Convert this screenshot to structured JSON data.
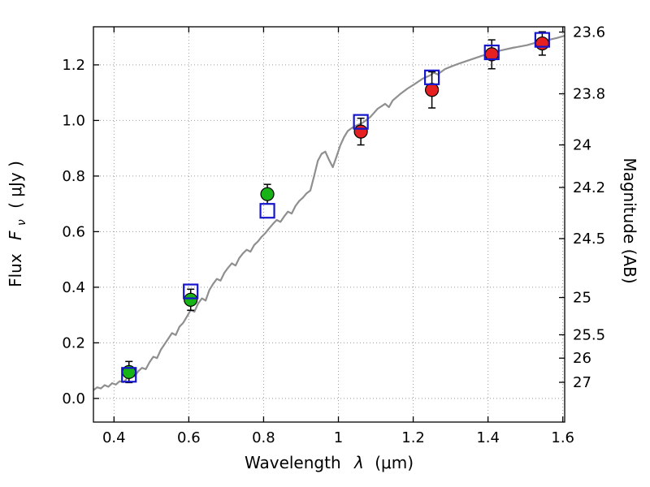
{
  "figure": {
    "background": "#ffffff"
  },
  "chart_data": {
    "type": "line+scatter",
    "title": "",
    "xlabel": {
      "prefix": "Wavelength",
      "symbol": "λ",
      "suffix": "(μm)"
    },
    "ylabel_left": {
      "prefix": "Flux",
      "symbol": "F",
      "subscript": "ν",
      "suffix": "( μJy )"
    },
    "ylabel_right": "Magnitude (AB)",
    "xlim": [
      0.345,
      1.605
    ],
    "ylim": [
      -0.085,
      1.337
    ],
    "grid": "dotted",
    "grid_color": "#999999",
    "legend": "none",
    "axis_color": "#000000",
    "x_ticks": [
      {
        "label": "0.4",
        "value": 0.4
      },
      {
        "label": "0.6",
        "value": 0.6
      },
      {
        "label": "0.8",
        "value": 0.8
      },
      {
        "label": "1",
        "value": 1.0
      },
      {
        "label": "1.2",
        "value": 1.2
      },
      {
        "label": "1.4",
        "value": 1.4
      },
      {
        "label": "1.6",
        "value": 1.6
      }
    ],
    "y_ticks_left": [
      {
        "label": "0.0",
        "value": 0.0
      },
      {
        "label": "0.2",
        "value": 0.2
      },
      {
        "label": "0.4",
        "value": 0.4
      },
      {
        "label": "0.6",
        "value": 0.6
      },
      {
        "label": "0.8",
        "value": 0.8
      },
      {
        "label": "1.0",
        "value": 1.0
      },
      {
        "label": "1.2",
        "value": 1.2
      }
    ],
    "y_ticks_right": [
      {
        "label": "23.6",
        "flux": 1.318
      },
      {
        "label": "23.8",
        "flux": 1.096
      },
      {
        "label": "24",
        "flux": 0.912
      },
      {
        "label": "24.2",
        "flux": 0.759
      },
      {
        "label": "24.5",
        "flux": 0.575
      },
      {
        "label": "25",
        "flux": 0.363
      },
      {
        "label": "25.5",
        "flux": 0.229
      },
      {
        "label": "26",
        "flux": 0.145
      },
      {
        "label": "27",
        "flux": 0.058
      }
    ],
    "model_spectrum": {
      "name": "model-spectrum-line",
      "color": "#8f8f8f",
      "points": [
        [
          0.345,
          0.03
        ],
        [
          0.355,
          0.04
        ],
        [
          0.365,
          0.036
        ],
        [
          0.375,
          0.048
        ],
        [
          0.385,
          0.042
        ],
        [
          0.395,
          0.055
        ],
        [
          0.405,
          0.05
        ],
        [
          0.415,
          0.062
        ],
        [
          0.425,
          0.058
        ],
        [
          0.435,
          0.072
        ],
        [
          0.445,
          0.085
        ],
        [
          0.455,
          0.08
        ],
        [
          0.465,
          0.098
        ],
        [
          0.475,
          0.11
        ],
        [
          0.485,
          0.105
        ],
        [
          0.495,
          0.13
        ],
        [
          0.505,
          0.15
        ],
        [
          0.515,
          0.145
        ],
        [
          0.525,
          0.175
        ],
        [
          0.535,
          0.195
        ],
        [
          0.545,
          0.215
        ],
        [
          0.555,
          0.235
        ],
        [
          0.565,
          0.228
        ],
        [
          0.575,
          0.258
        ],
        [
          0.585,
          0.272
        ],
        [
          0.595,
          0.295
        ],
        [
          0.605,
          0.318
        ],
        [
          0.615,
          0.312
        ],
        [
          0.625,
          0.342
        ],
        [
          0.635,
          0.36
        ],
        [
          0.645,
          0.352
        ],
        [
          0.655,
          0.39
        ],
        [
          0.665,
          0.412
        ],
        [
          0.675,
          0.43
        ],
        [
          0.685,
          0.424
        ],
        [
          0.695,
          0.452
        ],
        [
          0.705,
          0.47
        ],
        [
          0.715,
          0.486
        ],
        [
          0.725,
          0.478
        ],
        [
          0.735,
          0.505
        ],
        [
          0.745,
          0.522
        ],
        [
          0.755,
          0.535
        ],
        [
          0.765,
          0.528
        ],
        [
          0.775,
          0.552
        ],
        [
          0.785,
          0.565
        ],
        [
          0.795,
          0.582
        ],
        [
          0.805,
          0.595
        ],
        [
          0.815,
          0.612
        ],
        [
          0.825,
          0.628
        ],
        [
          0.835,
          0.642
        ],
        [
          0.845,
          0.635
        ],
        [
          0.855,
          0.655
        ],
        [
          0.865,
          0.672
        ],
        [
          0.875,
          0.665
        ],
        [
          0.885,
          0.692
        ],
        [
          0.895,
          0.71
        ],
        [
          0.905,
          0.722
        ],
        [
          0.915,
          0.738
        ],
        [
          0.925,
          0.748
        ],
        [
          0.935,
          0.8
        ],
        [
          0.945,
          0.855
        ],
        [
          0.955,
          0.88
        ],
        [
          0.965,
          0.888
        ],
        [
          0.975,
          0.858
        ],
        [
          0.985,
          0.832
        ],
        [
          0.995,
          0.87
        ],
        [
          1.005,
          0.91
        ],
        [
          1.015,
          0.94
        ],
        [
          1.025,
          0.962
        ],
        [
          1.035,
          0.972
        ],
        [
          1.045,
          0.98
        ],
        [
          1.055,
          0.986
        ],
        [
          1.065,
          0.992
        ],
        [
          1.085,
          1.012
        ],
        [
          1.105,
          1.042
        ],
        [
          1.125,
          1.06
        ],
        [
          1.135,
          1.048
        ],
        [
          1.145,
          1.072
        ],
        [
          1.165,
          1.095
        ],
        [
          1.185,
          1.115
        ],
        [
          1.205,
          1.132
        ],
        [
          1.225,
          1.15
        ],
        [
          1.245,
          1.162
        ],
        [
          1.255,
          1.172
        ],
        [
          1.265,
          1.166
        ],
        [
          1.285,
          1.185
        ],
        [
          1.305,
          1.196
        ],
        [
          1.325,
          1.206
        ],
        [
          1.345,
          1.215
        ],
        [
          1.365,
          1.224
        ],
        [
          1.385,
          1.233
        ],
        [
          1.405,
          1.24
        ],
        [
          1.425,
          1.249
        ],
        [
          1.445,
          1.255
        ],
        [
          1.465,
          1.261
        ],
        [
          1.485,
          1.266
        ],
        [
          1.505,
          1.271
        ],
        [
          1.525,
          1.279
        ],
        [
          1.545,
          1.285
        ],
        [
          1.565,
          1.291
        ],
        [
          1.585,
          1.297
        ],
        [
          1.605,
          1.305
        ]
      ]
    },
    "series": [
      {
        "name": "observed-points-green",
        "marker": "circle",
        "color": "#17b317",
        "edge": "#000000",
        "points": [
          {
            "x": 0.44,
            "y": 0.095,
            "yerr": 0.038
          },
          {
            "x": 0.605,
            "y": 0.355,
            "yerr": 0.038
          },
          {
            "x": 0.81,
            "y": 0.735,
            "yerr": 0.035
          }
        ]
      },
      {
        "name": "observed-points-red",
        "marker": "circle",
        "color": "#e62020",
        "edge": "#000000",
        "points": [
          {
            "x": 1.06,
            "y": 0.96,
            "yerr": 0.048
          },
          {
            "x": 1.25,
            "y": 1.11,
            "yerr": 0.065
          },
          {
            "x": 1.41,
            "y": 1.238,
            "yerr": 0.052
          },
          {
            "x": 1.545,
            "y": 1.277,
            "yerr": 0.042
          }
        ]
      },
      {
        "name": "model-photometry-squares",
        "marker": "square-open",
        "color": "#1515cc",
        "points": [
          {
            "x": 0.44,
            "y": 0.085
          },
          {
            "x": 0.605,
            "y": 0.385
          },
          {
            "x": 0.81,
            "y": 0.675
          },
          {
            "x": 1.06,
            "y": 0.995
          },
          {
            "x": 1.25,
            "y": 1.155
          },
          {
            "x": 1.41,
            "y": 1.245
          },
          {
            "x": 1.545,
            "y": 1.29
          }
        ]
      }
    ]
  }
}
